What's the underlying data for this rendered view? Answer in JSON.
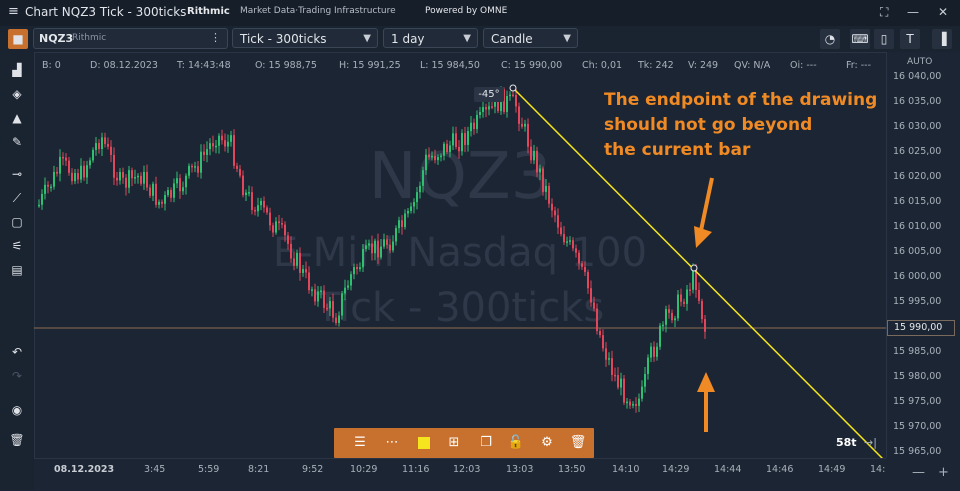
{
  "window": {
    "menu_glyph": "≡",
    "title": "Chart NQZ3 Tick - 300ticks",
    "brand_rithmic": "Rithmic",
    "brand_tagline": "Market Data·Trading Infrastructure",
    "brand_omne": "Powered by OMNE",
    "controls": [
      "⛶",
      "—",
      "✕"
    ]
  },
  "toolbar": {
    "symbol": "NQZ3",
    "connection": "Rithmic",
    "interval": "Tick - 300ticks",
    "period": "1 day",
    "chart_type": "Candle"
  },
  "info_bar": {
    "items": [
      "B: 0",
      "D: 08.12.2023",
      "T: 14:43:48",
      "O: 15 988,75",
      "H: 15 991,25",
      "L: 15 984,50",
      "C: 15 990,00",
      "Ch: 0,01",
      "Tk: 242",
      "V: 249",
      "QV: N/A",
      "Oi: ---",
      "Fr: ---"
    ]
  },
  "price_axis": {
    "auto_label": "AUTO",
    "labels": [
      "16 040,00",
      "16 035,00",
      "16 030,00",
      "16 025,00",
      "16 020,00",
      "16 015,00",
      "16 010,00",
      "16 005,00",
      "16 000,00",
      "15 995,00",
      "15 985,00",
      "15 980,00",
      "15 975,00",
      "15 970,00",
      "15 965,00"
    ],
    "current_price": "15 990,00"
  },
  "time_axis": {
    "labels": [
      "08.12.2023",
      "3:45",
      "5:59",
      "8:21",
      "9:52",
      "10:29",
      "11:16",
      "12:03",
      "13:03",
      "13:50",
      "14:10",
      "14:29",
      "14:44",
      "14:46",
      "14:49",
      "14:"
    ]
  },
  "watermark": {
    "symbol": "NQZ3",
    "name": "E-Mini Nasdaq 100",
    "interval": "Tick - 300ticks"
  },
  "drawing": {
    "angle_label": "-45°",
    "tick_count": "58t"
  },
  "annotation": {
    "lines": [
      "The endpoint of the drawing",
      "should not go beyond",
      "the current bar"
    ]
  },
  "colors": {
    "up": "#2fbf71",
    "down": "#e0475b",
    "line": "#f5e51e",
    "annotation": "#f08a24",
    "drawing_toolbar": "#c8712e"
  },
  "bottom_controls": [
    "—",
    "+"
  ]
}
